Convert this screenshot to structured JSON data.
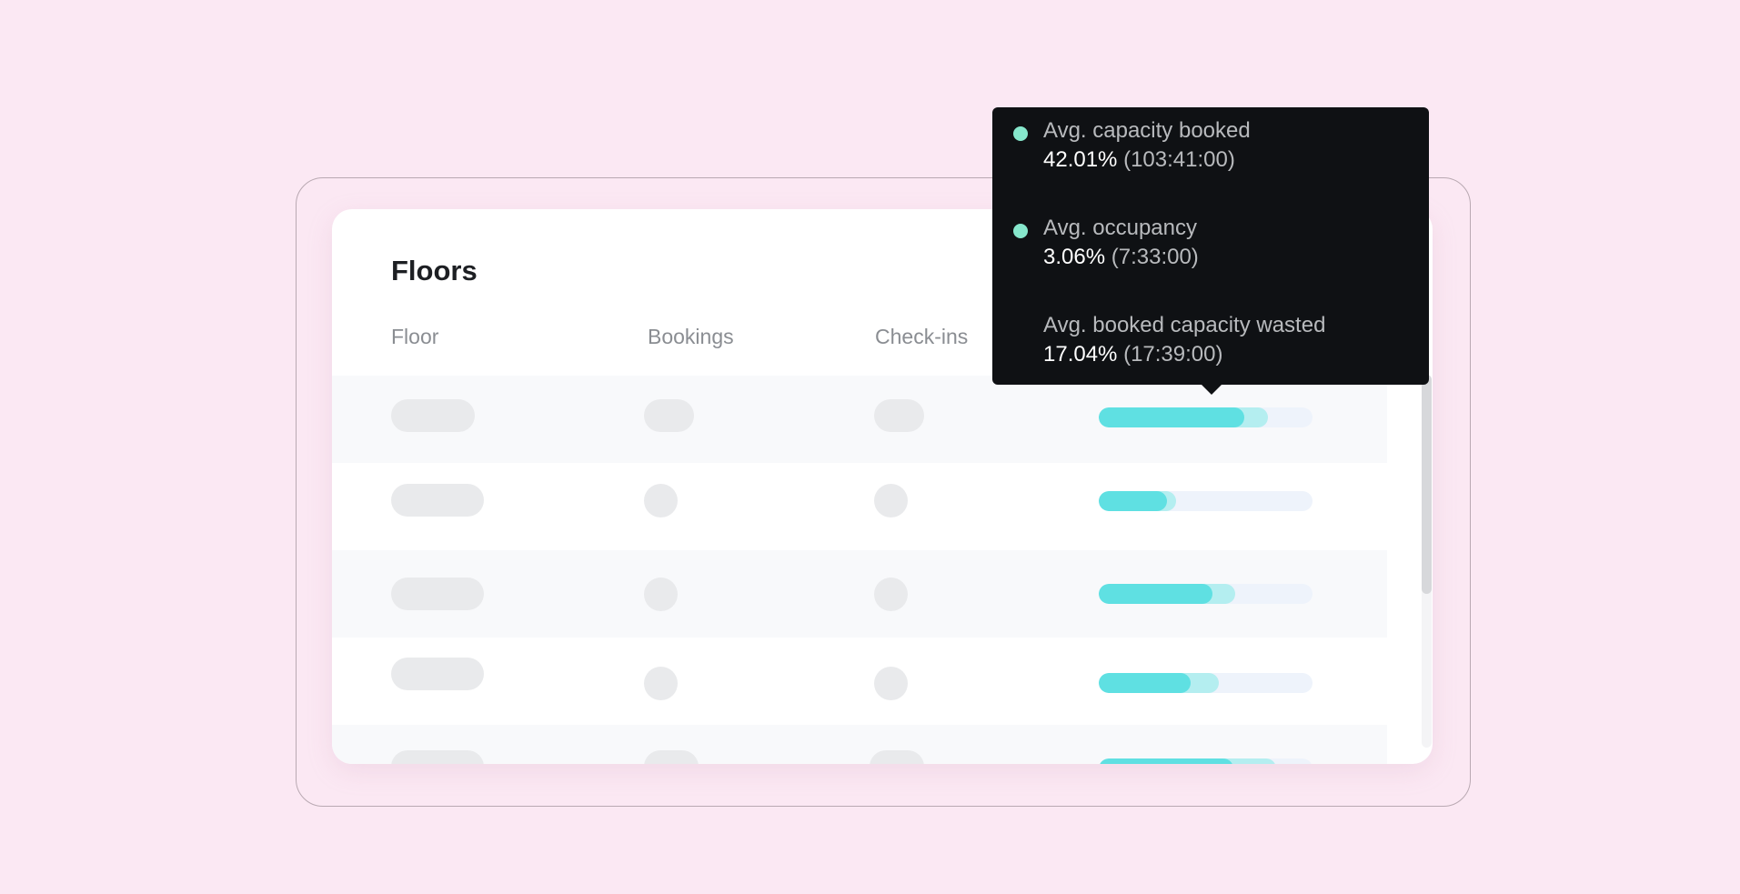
{
  "floors_card": {
    "title": "Floors",
    "columns": [
      "Floor",
      "Bookings",
      "Check-ins"
    ]
  },
  "rows": [
    {
      "capacity_booked": 0.79,
      "occupancy": 0.68
    },
    {
      "capacity_booked": 0.36,
      "occupancy": 0.32
    },
    {
      "capacity_booked": 0.64,
      "occupancy": 0.53
    },
    {
      "capacity_booked": 0.56,
      "occupancy": 0.43
    },
    {
      "capacity_booked": 0.83,
      "occupancy": 0.63
    }
  ],
  "tooltip": {
    "items": [
      {
        "label": "Avg. capacity booked",
        "value": "42.01%",
        "duration": "(103:41:00)",
        "bullet": true
      },
      {
        "label": "Avg. occupancy",
        "value": "3.06%",
        "duration": "(7:33:00)",
        "bullet": true
      },
      {
        "label": "Avg. booked capacity wasted",
        "value": "17.04%",
        "duration": "(17:39:00)",
        "bullet": false
      }
    ]
  },
  "colors": {
    "background": "#fbe8f3",
    "bar_occupied": "#5fe0e2",
    "bar_booked": "#b4eef0",
    "bar_track": "#eef3fb",
    "tooltip_bg": "#0f1114",
    "tooltip_bullet": "#86e7cc"
  }
}
